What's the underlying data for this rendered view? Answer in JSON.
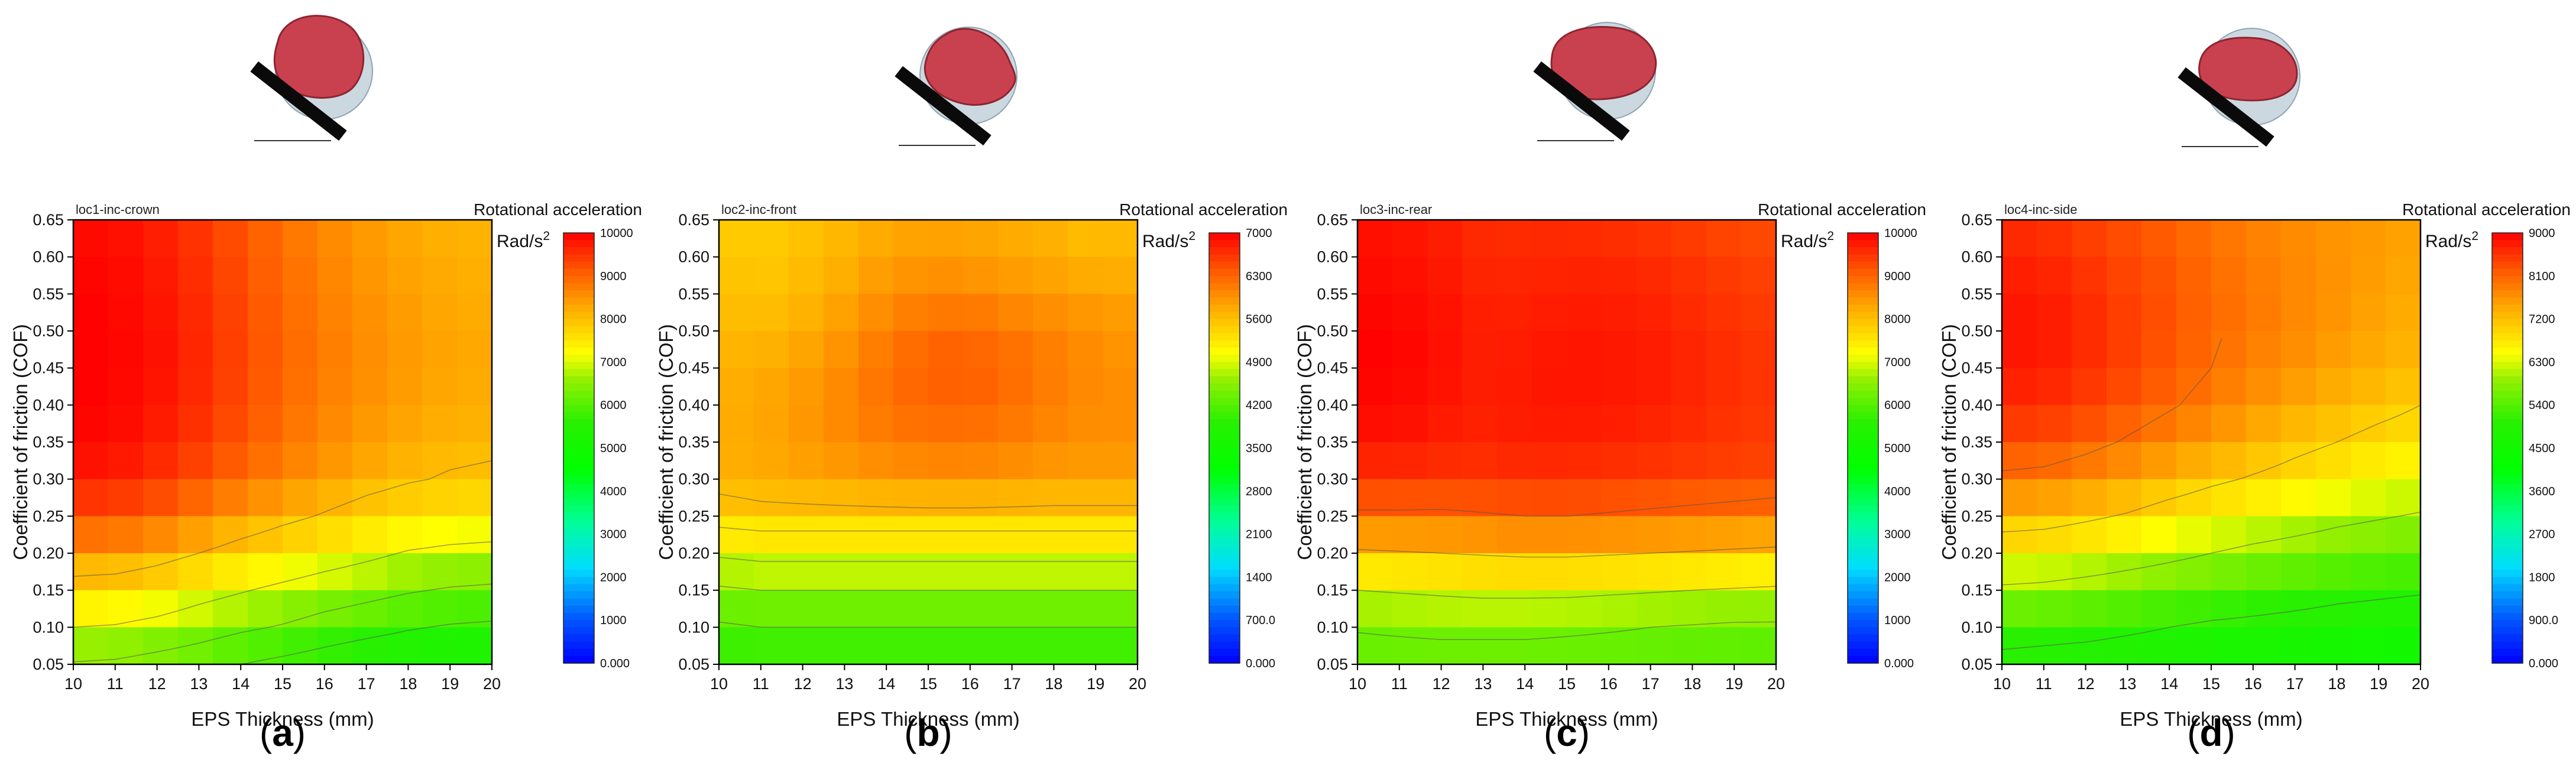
{
  "figure": {
    "panel_labels": [
      "(a)",
      "(b)",
      "(c)",
      "(d)"
    ],
    "impact_icons": [
      "head-crown-impact-icon",
      "head-front-impact-icon",
      "head-rear-impact-icon",
      "head-side-impact-icon"
    ]
  },
  "chart_data": [
    {
      "type": "heatmap",
      "subtype": "contour",
      "title": "loc1-inc-crown",
      "colorbar_title": "Rotational acceleration",
      "colorbar_unit": "Rad/s2",
      "xlabel": "EPS Thickness (mm)",
      "ylabel": "Coefficient of friction (COF)",
      "xlim": [
        10,
        20
      ],
      "ylim": [
        0.05,
        0.65
      ],
      "x_ticks": [
        "10",
        "11",
        "12",
        "13",
        "14",
        "15",
        "16",
        "17",
        "18",
        "19",
        "20"
      ],
      "y_ticks": [
        "0.05",
        "0.10",
        "0.15",
        "0.20",
        "0.25",
        "0.30",
        "0.35",
        "0.40",
        "0.45",
        "0.50",
        "0.55",
        "0.60",
        "0.65"
      ],
      "colorbar_ticks": [
        "0.000",
        "1000",
        "2000",
        "3000",
        "4000",
        "5000",
        "6000",
        "7000",
        "8000",
        "9000",
        "10000"
      ],
      "zlim": [
        0,
        10000
      ],
      "contour_levels": [
        5700,
        6300,
        7000,
        8000
      ],
      "z": [
        [
          6250,
          6200,
          6050,
          5900,
          5700,
          5550,
          5400,
          5250,
          5150,
          5050,
          5000
        ],
        [
          7000,
          6950,
          6800,
          6600,
          6400,
          6250,
          6050,
          5900,
          5750,
          5650,
          5600
        ],
        [
          7700,
          7650,
          7500,
          7250,
          7050,
          6850,
          6650,
          6500,
          6350,
          6250,
          6200
        ],
        [
          8500,
          8450,
          8250,
          8000,
          7750,
          7550,
          7350,
          7150,
          6950,
          6850,
          6800
        ],
        [
          9250,
          9200,
          9000,
          8700,
          8400,
          8150,
          7950,
          7750,
          7600,
          7500,
          7450
        ],
        [
          9750,
          9700,
          9500,
          9200,
          8900,
          8650,
          8400,
          8200,
          8050,
          7950,
          7900
        ],
        [
          9950,
          9900,
          9700,
          9450,
          9150,
          8850,
          8600,
          8400,
          8250,
          8150,
          8100
        ],
        [
          10000,
          9950,
          9800,
          9550,
          9250,
          8950,
          8700,
          8500,
          8350,
          8250,
          8200
        ],
        [
          10000,
          9950,
          9850,
          9600,
          9300,
          9000,
          8750,
          8550,
          8400,
          8300,
          8250
        ],
        [
          10000,
          9950,
          9850,
          9600,
          9300,
          9000,
          8750,
          8550,
          8400,
          8300,
          8250
        ],
        [
          10000,
          9950,
          9800,
          9550,
          9250,
          8950,
          8700,
          8500,
          8350,
          8250,
          8200
        ],
        [
          9950,
          9900,
          9750,
          9500,
          9200,
          8900,
          8650,
          8450,
          8300,
          8200,
          8150
        ],
        [
          9900,
          9850,
          9700,
          9450,
          9150,
          8850,
          8600,
          8400,
          8250,
          8150,
          8100
        ]
      ]
    },
    {
      "type": "heatmap",
      "subtype": "contour",
      "title": "loc2-inc-front",
      "colorbar_title": "Rotational acceleration",
      "colorbar_unit": "Rad/s2",
      "xlabel": "EPS Thickness (mm)",
      "ylabel": "Coefficient of friction (COF)",
      "xlim": [
        10,
        20
      ],
      "ylim": [
        0.05,
        0.65
      ],
      "x_ticks": [
        "10",
        "11",
        "12",
        "13",
        "14",
        "15",
        "16",
        "17",
        "18",
        "19",
        "20"
      ],
      "y_ticks": [
        "0.05",
        "0.10",
        "0.15",
        "0.20",
        "0.25",
        "0.30",
        "0.35",
        "0.40",
        "0.45",
        "0.50",
        "0.55",
        "0.60",
        "0.65"
      ],
      "colorbar_ticks": [
        "0.000",
        "700.0",
        "1400",
        "2100",
        "2800",
        "3500",
        "4200",
        "4900",
        "5600",
        "6300",
        "7000"
      ],
      "zlim": [
        0,
        7000
      ],
      "contour_levels": [
        4200,
        4550,
        4900,
        5300,
        5600
      ],
      "z": [
        [
          3900,
          3950,
          3950,
          3950,
          3950,
          3950,
          3950,
          3950,
          3950,
          3950,
          3950
        ],
        [
          4150,
          4200,
          4200,
          4200,
          4200,
          4200,
          4200,
          4200,
          4200,
          4200,
          4200
        ],
        [
          4500,
          4550,
          4550,
          4550,
          4550,
          4550,
          4550,
          4550,
          4550,
          4550,
          4550
        ],
        [
          4950,
          5000,
          5000,
          5000,
          5000,
          5000,
          5000,
          5000,
          5000,
          5000,
          5000
        ],
        [
          5450,
          5500,
          5500,
          5500,
          5500,
          5500,
          5500,
          5500,
          5500,
          5500,
          5500
        ],
        [
          5700,
          5750,
          5800,
          5850,
          5900,
          5950,
          5950,
          5900,
          5850,
          5850,
          5850
        ],
        [
          5750,
          5800,
          5900,
          6000,
          6100,
          6150,
          6150,
          6100,
          6000,
          5950,
          5950
        ],
        [
          5750,
          5800,
          5900,
          6050,
          6200,
          6300,
          6300,
          6200,
          6100,
          6000,
          6000
        ],
        [
          5700,
          5750,
          5850,
          6000,
          6200,
          6350,
          6350,
          6250,
          6100,
          6000,
          5950
        ],
        [
          5650,
          5650,
          5750,
          5900,
          6100,
          6250,
          6250,
          6150,
          6050,
          5950,
          5900
        ],
        [
          5600,
          5550,
          5650,
          5800,
          5950,
          6050,
          6050,
          5950,
          5900,
          5850,
          5800
        ],
        [
          5550,
          5500,
          5600,
          5700,
          5850,
          5900,
          5850,
          5800,
          5750,
          5650,
          5700
        ],
        [
          5500,
          5450,
          5550,
          5650,
          5750,
          5800,
          5800,
          5750,
          5700,
          5550,
          5650
        ]
      ]
    },
    {
      "type": "heatmap",
      "subtype": "contour",
      "title": "loc3-inc-rear",
      "colorbar_title": "Rotational acceleration",
      "colorbar_unit": "Rad/s2",
      "xlabel": "EPS Thickness (mm)",
      "ylabel": "Coefficient of friction (COF)",
      "xlim": [
        10,
        20
      ],
      "ylim": [
        0.05,
        0.65
      ],
      "x_ticks": [
        "10",
        "11",
        "12",
        "13",
        "14",
        "15",
        "16",
        "17",
        "18",
        "19",
        "20"
      ],
      "y_ticks": [
        "0.05",
        "0.10",
        "0.15",
        "0.20",
        "0.25",
        "0.30",
        "0.35",
        "0.40",
        "0.45",
        "0.50",
        "0.55",
        "0.60",
        "0.65"
      ],
      "colorbar_ticks": [
        "0.000",
        "1000",
        "2000",
        "3000",
        "4000",
        "5000",
        "6000",
        "7000",
        "8000",
        "9000",
        "10000"
      ],
      "zlim": [
        0,
        10000
      ],
      "contour_levels": [
        6300,
        7000,
        8000,
        9000
      ],
      "z": [
        [
          6000,
          6000,
          6000,
          6000,
          6000,
          6000,
          6000,
          6000,
          6000,
          6000,
          6000
        ],
        [
          6350,
          6400,
          6450,
          6450,
          6450,
          6400,
          6350,
          6300,
          6250,
          6200,
          6200
        ],
        [
          7000,
          7050,
          7100,
          7150,
          7150,
          7150,
          7100,
          7050,
          7000,
          6950,
          6900
        ],
        [
          7900,
          7950,
          8000,
          8050,
          8100,
          8100,
          8050,
          8000,
          7950,
          7900,
          7850
        ],
        [
          8900,
          8900,
          8900,
          8950,
          9000,
          9000,
          8950,
          8900,
          8850,
          8800,
          8750
        ],
        [
          9500,
          9500,
          9450,
          9450,
          9500,
          9500,
          9450,
          9400,
          9350,
          9300,
          9250
        ],
        [
          9800,
          9800,
          9700,
          9650,
          9700,
          9700,
          9650,
          9600,
          9550,
          9450,
          9400
        ],
        [
          9950,
          9900,
          9800,
          9700,
          9750,
          9800,
          9750,
          9700,
          9600,
          9500,
          9450
        ],
        [
          10000,
          9950,
          9850,
          9700,
          9750,
          9800,
          9800,
          9750,
          9650,
          9550,
          9450
        ],
        [
          10000,
          9950,
          9850,
          9700,
          9700,
          9800,
          9750,
          9700,
          9600,
          9500,
          9400
        ],
        [
          9950,
          9900,
          9800,
          9650,
          9650,
          9700,
          9700,
          9650,
          9550,
          9450,
          9350
        ],
        [
          9900,
          9850,
          9750,
          9600,
          9600,
          9650,
          9600,
          9550,
          9450,
          9350,
          9300
        ],
        [
          9850,
          9800,
          9700,
          9550,
          9550,
          9550,
          9500,
          9450,
          9350,
          9250,
          9200
        ]
      ]
    },
    {
      "type": "heatmap",
      "subtype": "contour",
      "title": "loc4-inc-side",
      "colorbar_title": "Rotational acceleration",
      "colorbar_unit": "Rad/s2",
      "xlabel": "EPS Thickness (mm)",
      "ylabel": "Coefficient of friction (COF)",
      "xlim": [
        10,
        20
      ],
      "ylim": [
        0.05,
        0.65
      ],
      "x_ticks": [
        "10",
        "11",
        "12",
        "13",
        "14",
        "15",
        "16",
        "17",
        "18",
        "19",
        "20"
      ],
      "y_ticks": [
        "0.05",
        "0.10",
        "0.15",
        "0.20",
        "0.25",
        "0.30",
        "0.35",
        "0.40",
        "0.45",
        "0.50",
        "0.55",
        "0.60",
        "0.65"
      ],
      "colorbar_ticks": [
        "0.000",
        "900.0",
        "1800",
        "2700",
        "3600",
        "4500",
        "5400",
        "6300",
        "7200",
        "8100",
        "9000"
      ],
      "zlim": [
        0,
        9000
      ],
      "contour_levels": [
        5000,
        6000,
        7000,
        8000
      ],
      "z": [
        [
          4800,
          4750,
          4700,
          4650,
          4600,
          4550,
          4500,
          4450,
          4400,
          4350,
          4300
        ],
        [
          5300,
          5250,
          5200,
          5100,
          5000,
          4900,
          4850,
          4800,
          4750,
          4700,
          4650
        ],
        [
          5900,
          5850,
          5750,
          5650,
          5550,
          5450,
          5350,
          5250,
          5150,
          5100,
          5050
        ],
        [
          6600,
          6550,
          6450,
          6300,
          6150,
          6000,
          5850,
          5750,
          5650,
          5550,
          5500
        ],
        [
          7300,
          7250,
          7100,
          6950,
          6750,
          6600,
          6450,
          6300,
          6150,
          6050,
          5950
        ],
        [
          7900,
          7850,
          7700,
          7500,
          7300,
          7100,
          6950,
          6800,
          6650,
          6500,
          6400
        ],
        [
          8350,
          8300,
          8150,
          7950,
          7750,
          7550,
          7350,
          7150,
          7000,
          6850,
          6750
        ],
        [
          8650,
          8600,
          8450,
          8250,
          8050,
          7850,
          7650,
          7450,
          7300,
          7150,
          7000
        ],
        [
          8800,
          8750,
          8600,
          8400,
          8200,
          8000,
          7800,
          7650,
          7500,
          7350,
          7250
        ],
        [
          8850,
          8800,
          8650,
          8450,
          8250,
          8050,
          7900,
          7750,
          7600,
          7450,
          7350
        ],
        [
          8800,
          8750,
          8600,
          8400,
          8250,
          8050,
          7900,
          7750,
          7650,
          7500,
          7400
        ],
        [
          8700,
          8650,
          8500,
          8350,
          8200,
          8000,
          7850,
          7750,
          7650,
          7550,
          7450
        ],
        [
          8600,
          8550,
          8400,
          8250,
          8100,
          7950,
          7800,
          7700,
          7600,
          7550,
          7500
        ]
      ]
    }
  ]
}
